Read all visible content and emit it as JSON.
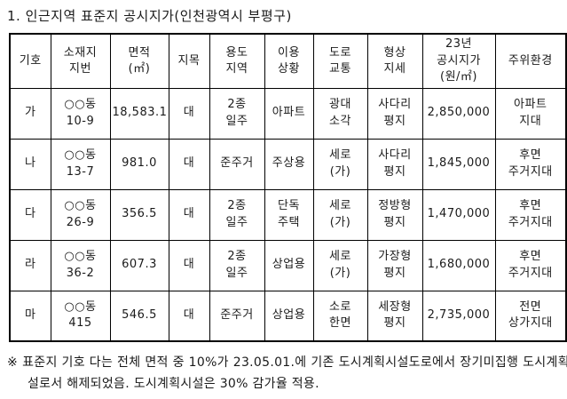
{
  "page": {
    "title": "1. 인근지역 표준지 공시지가(인천광역시 부평구)"
  },
  "table": {
    "columns": [
      {
        "id": "symbol",
        "lines": [
          "기호"
        ]
      },
      {
        "id": "lot-number",
        "lines": [
          "소재지",
          "지번"
        ]
      },
      {
        "id": "area",
        "lines": [
          "면적",
          "(㎡)"
        ]
      },
      {
        "id": "category",
        "lines": [
          "지목"
        ]
      },
      {
        "id": "use-zone",
        "lines": [
          "용도",
          "지역"
        ]
      },
      {
        "id": "usage",
        "lines": [
          "이용",
          "상황"
        ]
      },
      {
        "id": "road",
        "lines": [
          "도로",
          "교통"
        ]
      },
      {
        "id": "shape",
        "lines": [
          "형상",
          "지세"
        ]
      },
      {
        "id": "price-2023",
        "lines": [
          "23년",
          "공시지가",
          "(원/㎡)"
        ]
      },
      {
        "id": "environment",
        "lines": [
          "주위환경"
        ]
      }
    ],
    "rows": [
      {
        "cells": [
          [
            "가"
          ],
          [
            "○○동",
            "10-9"
          ],
          [
            "18,583.1"
          ],
          [
            "대"
          ],
          [
            "2종",
            "일주"
          ],
          [
            "아파트"
          ],
          [
            "광대",
            "소각"
          ],
          [
            "사다리",
            "평지"
          ],
          [
            "2,850,000"
          ],
          [
            "아파트",
            "지대"
          ]
        ]
      },
      {
        "cells": [
          [
            "나"
          ],
          [
            "○○동",
            "13-7"
          ],
          [
            "981.0"
          ],
          [
            "대"
          ],
          [
            "준주거"
          ],
          [
            "주상용"
          ],
          [
            "세로",
            "(가)"
          ],
          [
            "사다리",
            "평지"
          ],
          [
            "1,845,000"
          ],
          [
            "후면",
            "주거지대"
          ]
        ]
      },
      {
        "cells": [
          [
            "다"
          ],
          [
            "○○동",
            "26-9"
          ],
          [
            "356.5"
          ],
          [
            "대"
          ],
          [
            "2종",
            "일주"
          ],
          [
            "단독",
            "주택"
          ],
          [
            "세로",
            "(가)"
          ],
          [
            "정방형",
            "평지"
          ],
          [
            "1,470,000"
          ],
          [
            "후면",
            "주거지대"
          ]
        ]
      },
      {
        "cells": [
          [
            "라"
          ],
          [
            "○○동",
            "36-2"
          ],
          [
            "607.3"
          ],
          [
            "대"
          ],
          [
            "2종",
            "일주"
          ],
          [
            "상업용"
          ],
          [
            "세로",
            "(가)"
          ],
          [
            "가장형",
            "평지"
          ],
          [
            "1,680,000"
          ],
          [
            "후면",
            "주거지대"
          ]
        ]
      },
      {
        "cells": [
          [
            "마"
          ],
          [
            "○○동",
            "415"
          ],
          [
            "546.5"
          ],
          [
            "대"
          ],
          [
            "준주거"
          ],
          [
            "상업용"
          ],
          [
            "소로",
            "한면"
          ],
          [
            "세장형",
            "평지"
          ],
          [
            "2,735,000"
          ],
          [
            "전면",
            "상가지대"
          ]
        ]
      }
    ]
  },
  "footnote": {
    "marker": "※",
    "text": "표준지 기호 다는 전체 면적 중 10%가 23.05.01.에 기존 도시계획시설도로에서 장기미집행 도시계획시설로서 해제되었음. 도시계획시설은 30% 감가율 적용."
  },
  "colors": {
    "text": "#1a1a1a",
    "border": "#000000",
    "background": "#ffffff"
  }
}
